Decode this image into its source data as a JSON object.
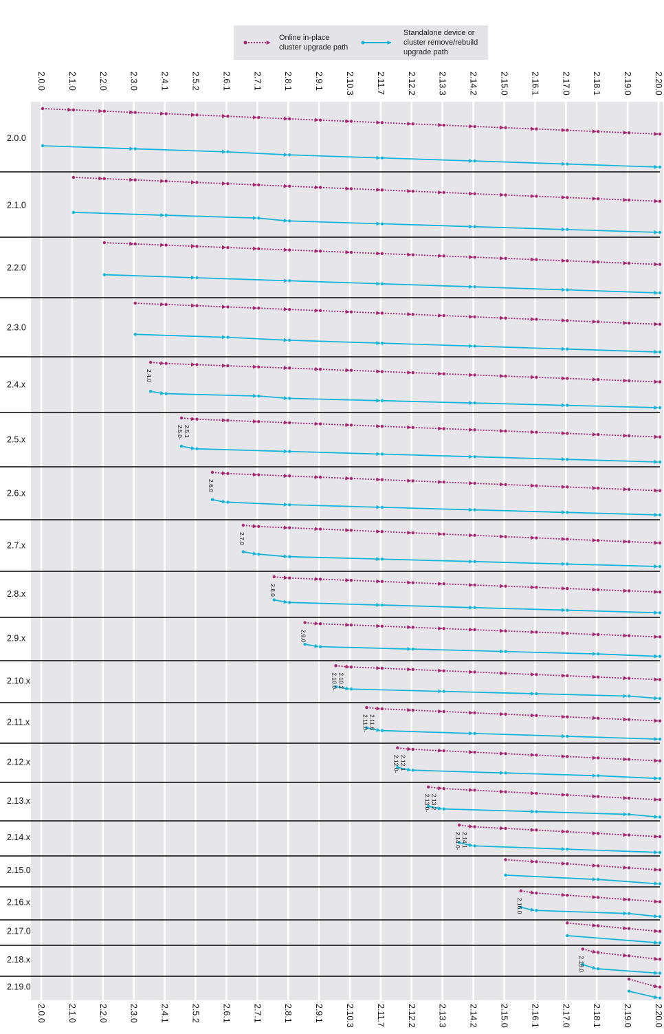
{
  "legend": {
    "inplace_label": [
      "Online in-place",
      "cluster upgrade path"
    ],
    "standalone_label": [
      "Standalone device or",
      "cluster remove/rebuild",
      "upgrade path"
    ]
  },
  "colors": {
    "inplace": "#a4276f",
    "standalone": "#16b4d8",
    "band": "#e6e6ea",
    "legend_bg": "#e3e3e8",
    "separator": "#000000"
  },
  "versions": [
    "2.0.0",
    "2.1.0",
    "2.2.0",
    "2.3.0",
    "2.4.1",
    "2.5.2",
    "2.6.1",
    "2.7.1",
    "2.8.1",
    "2.9.1",
    "2.10.3",
    "2.11.7",
    "2.12.2",
    "2.13.3",
    "2.14.2",
    "2.15.0",
    "2.16.1",
    "2.17.0",
    "2.18.1",
    "2.19.0",
    "2.20.0"
  ],
  "rows": [
    {
      "label": "2.0.0",
      "start": "2.0.0",
      "note": [],
      "inplace": [
        "2.0.0",
        "2.1.0",
        "2.2.0",
        "2.3.0",
        "2.4.1",
        "2.5.2",
        "2.6.1",
        "2.7.1",
        "2.8.1",
        "2.9.1",
        "2.10.3",
        "2.11.7",
        "2.12.2",
        "2.13.3",
        "2.14.2",
        "2.15.0",
        "2.16.1",
        "2.17.0",
        "2.18.1",
        "2.19.0",
        "2.20.0"
      ],
      "standalone": [
        "2.0.0",
        "2.3.0",
        "2.6.1",
        "2.8.1",
        "2.11.7",
        "2.14.2",
        "2.17.0",
        "2.20.0"
      ]
    },
    {
      "label": "2.1.0",
      "start": "2.1.0",
      "note": [],
      "inplace": [
        "2.1.0",
        "2.2.0",
        "2.3.0",
        "2.4.1",
        "2.5.2",
        "2.6.1",
        "2.7.1",
        "2.8.1",
        "2.9.1",
        "2.10.3",
        "2.11.7",
        "2.12.2",
        "2.13.3",
        "2.14.2",
        "2.15.0",
        "2.16.1",
        "2.17.0",
        "2.18.1",
        "2.19.0",
        "2.20.0"
      ],
      "standalone": [
        "2.1.0",
        "2.4.1",
        "2.7.1",
        "2.8.1",
        "2.11.7",
        "2.14.2",
        "2.17.0",
        "2.20.0"
      ]
    },
    {
      "label": "2.2.0",
      "start": "2.2.0",
      "note": [],
      "inplace": [
        "2.2.0",
        "2.3.0",
        "2.4.1",
        "2.5.2",
        "2.6.1",
        "2.7.1",
        "2.8.1",
        "2.9.1",
        "2.10.3",
        "2.11.7",
        "2.12.2",
        "2.13.3",
        "2.14.2",
        "2.15.0",
        "2.16.1",
        "2.17.0",
        "2.18.1",
        "2.19.0",
        "2.20.0"
      ],
      "standalone": [
        "2.2.0",
        "2.5.2",
        "2.8.1",
        "2.11.7",
        "2.14.2",
        "2.17.0",
        "2.20.0"
      ]
    },
    {
      "label": "2.3.0",
      "start": "2.3.0",
      "note": [],
      "inplace": [
        "2.3.0",
        "2.4.1",
        "2.5.2",
        "2.6.1",
        "2.7.1",
        "2.8.1",
        "2.9.1",
        "2.10.3",
        "2.11.7",
        "2.12.2",
        "2.13.3",
        "2.14.2",
        "2.15.0",
        "2.16.1",
        "2.17.0",
        "2.18.1",
        "2.19.0",
        "2.20.0"
      ],
      "standalone": [
        "2.3.0",
        "2.6.1",
        "2.8.1",
        "2.11.7",
        "2.14.2",
        "2.17.0",
        "2.20.0"
      ]
    },
    {
      "label": "2.4.x",
      "start": "2.4.0",
      "note": [
        "2.4.0"
      ],
      "inplace": [
        "2.4.0",
        "2.4.1",
        "2.5.2",
        "2.6.1",
        "2.7.1",
        "2.8.1",
        "2.9.1",
        "2.10.3",
        "2.11.7",
        "2.12.2",
        "2.13.3",
        "2.14.2",
        "2.15.0",
        "2.16.1",
        "2.17.0",
        "2.18.1",
        "2.19.0",
        "2.20.0"
      ],
      "standalone": [
        "2.4.0",
        "2.4.1",
        "2.7.1",
        "2.8.1",
        "2.11.7",
        "2.14.2",
        "2.17.0",
        "2.20.0"
      ]
    },
    {
      "label": "2.5.x",
      "start": "2.5.0",
      "note": [
        "2.5.0-",
        "2.5.1"
      ],
      "inplace": [
        "2.5.0",
        "2.5.2",
        "2.6.1",
        "2.7.1",
        "2.8.1",
        "2.9.1",
        "2.10.3",
        "2.11.7",
        "2.12.2",
        "2.13.3",
        "2.14.2",
        "2.15.0",
        "2.16.1",
        "2.17.0",
        "2.18.1",
        "2.19.0",
        "2.20.0"
      ],
      "standalone": [
        "2.5.0",
        "2.5.2",
        "2.8.1",
        "2.11.7",
        "2.14.2",
        "2.17.0",
        "2.20.0"
      ]
    },
    {
      "label": "2.6.x",
      "start": "2.6.0",
      "note": [
        "2.6.0"
      ],
      "inplace": [
        "2.6.0",
        "2.6.1",
        "2.7.1",
        "2.8.1",
        "2.9.1",
        "2.10.3",
        "2.11.7",
        "2.12.2",
        "2.13.3",
        "2.14.2",
        "2.15.0",
        "2.16.1",
        "2.17.0",
        "2.18.1",
        "2.19.0",
        "2.20.0"
      ],
      "standalone": [
        "2.6.0",
        "2.6.1",
        "2.8.1",
        "2.11.7",
        "2.14.2",
        "2.17.0",
        "2.20.0"
      ]
    },
    {
      "label": "2.7.x",
      "start": "2.7.0",
      "note": [
        "2.7.0"
      ],
      "inplace": [
        "2.7.0",
        "2.7.1",
        "2.8.1",
        "2.9.1",
        "2.10.3",
        "2.11.7",
        "2.12.2",
        "2.13.3",
        "2.14.2",
        "2.15.0",
        "2.16.1",
        "2.17.0",
        "2.18.1",
        "2.19.0",
        "2.20.0"
      ],
      "standalone": [
        "2.7.0",
        "2.7.1",
        "2.8.1",
        "2.11.7",
        "2.14.2",
        "2.17.0",
        "2.20.0"
      ]
    },
    {
      "label": "2.8.x",
      "start": "2.8.0",
      "note": [
        "2.8.0"
      ],
      "inplace": [
        "2.8.0",
        "2.8.1",
        "2.9.1",
        "2.10.3",
        "2.11.7",
        "2.12.2",
        "2.13.3",
        "2.14.2",
        "2.15.0",
        "2.16.1",
        "2.17.0",
        "2.18.1",
        "2.19.0",
        "2.20.0"
      ],
      "standalone": [
        "2.8.0",
        "2.8.1",
        "2.11.7",
        "2.14.2",
        "2.17.0",
        "2.20.0"
      ]
    },
    {
      "label": "2.9.x",
      "start": "2.9.0",
      "note": [
        "2.9.0"
      ],
      "inplace": [
        "2.9.0",
        "2.9.1",
        "2.10.3",
        "2.11.7",
        "2.12.2",
        "2.13.3",
        "2.14.2",
        "2.15.0",
        "2.16.1",
        "2.17.0",
        "2.18.1",
        "2.19.0",
        "2.20.0"
      ],
      "standalone": [
        "2.9.0",
        "2.9.1",
        "2.12.2",
        "2.15.0",
        "2.18.1",
        "2.20.0"
      ]
    },
    {
      "label": "2.10.x",
      "start": "2.10.0",
      "note": [
        "2.10.0-",
        "2.10.2"
      ],
      "inplace": [
        "2.10.0",
        "2.10.3",
        "2.11.7",
        "2.12.2",
        "2.13.3",
        "2.14.2",
        "2.15.0",
        "2.16.1",
        "2.17.0",
        "2.18.1",
        "2.19.0",
        "2.20.0"
      ],
      "standalone": [
        "2.10.0",
        "2.10.3",
        "2.13.3",
        "2.16.1",
        "2.19.0",
        "2.20.0"
      ]
    },
    {
      "label": "2.11.x",
      "start": "2.11.0",
      "note": [
        "2.11.0-",
        "2.11.6"
      ],
      "inplace": [
        "2.11.0",
        "2.11.7",
        "2.12.2",
        "2.13.3",
        "2.14.2",
        "2.15.0",
        "2.16.1",
        "2.17.0",
        "2.18.1",
        "2.19.0",
        "2.20.0"
      ],
      "standalone": [
        "2.11.0",
        "2.11.7",
        "2.14.2",
        "2.17.0",
        "2.20.0"
      ]
    },
    {
      "label": "2.12.x",
      "start": "2.12.0",
      "note": [
        "2.12.0-",
        "2.12.1"
      ],
      "inplace": [
        "2.12.0",
        "2.12.2",
        "2.13.3",
        "2.14.2",
        "2.15.0",
        "2.16.1",
        "2.17.0",
        "2.18.1",
        "2.19.0",
        "2.20.0"
      ],
      "standalone": [
        "2.12.0",
        "2.12.2",
        "2.15.0",
        "2.18.1",
        "2.20.0"
      ]
    },
    {
      "label": "2.13.x",
      "start": "2.13.0",
      "note": [
        "2.13.0-",
        "2.13.2"
      ],
      "inplace": [
        "2.13.0",
        "2.13.3",
        "2.14.2",
        "2.15.0",
        "2.16.1",
        "2.17.0",
        "2.18.1",
        "2.19.0",
        "2.20.0"
      ],
      "standalone": [
        "2.13.0",
        "2.13.3",
        "2.16.1",
        "2.19.0",
        "2.20.0"
      ]
    },
    {
      "label": "2.14.x",
      "start": "2.14.0",
      "note": [
        "2.14.0-",
        "2.14.1"
      ],
      "inplace": [
        "2.14.0",
        "2.14.2",
        "2.15.0",
        "2.16.1",
        "2.17.0",
        "2.18.1",
        "2.19.0",
        "2.20.0"
      ],
      "standalone": [
        "2.14.0",
        "2.14.2",
        "2.17.0",
        "2.20.0"
      ]
    },
    {
      "label": "2.15.0",
      "start": "2.15.0",
      "note": [],
      "inplace": [
        "2.15.0",
        "2.16.1",
        "2.17.0",
        "2.18.1",
        "2.19.0",
        "2.20.0"
      ],
      "standalone": [
        "2.15.0",
        "2.18.1",
        "2.20.0"
      ]
    },
    {
      "label": "2.16.x",
      "start": "2.16.0",
      "note": [
        "2.16.0"
      ],
      "inplace": [
        "2.16.0",
        "2.16.1",
        "2.17.0",
        "2.18.1",
        "2.19.0",
        "2.20.0"
      ],
      "standalone": [
        "2.16.0",
        "2.16.1",
        "2.19.0",
        "2.20.0"
      ]
    },
    {
      "label": "2.17.0",
      "start": "2.17.0",
      "note": [],
      "inplace": [
        "2.17.0",
        "2.18.1",
        "2.19.0",
        "2.20.0"
      ],
      "standalone": [
        "2.17.0",
        "2.20.0"
      ]
    },
    {
      "label": "2.18.x",
      "start": "2.18.0",
      "note": [
        "2.18.0"
      ],
      "inplace": [
        "2.18.0",
        "2.18.1",
        "2.19.0",
        "2.20.0"
      ],
      "standalone": [
        "2.18.0",
        "2.18.1",
        "2.20.0"
      ]
    },
    {
      "label": "2.19.0",
      "start": "2.19.0",
      "note": [],
      "inplace": [
        "2.19.0",
        "2.20.0"
      ],
      "standalone": [
        "2.19.0",
        "2.20.0"
      ]
    }
  ]
}
